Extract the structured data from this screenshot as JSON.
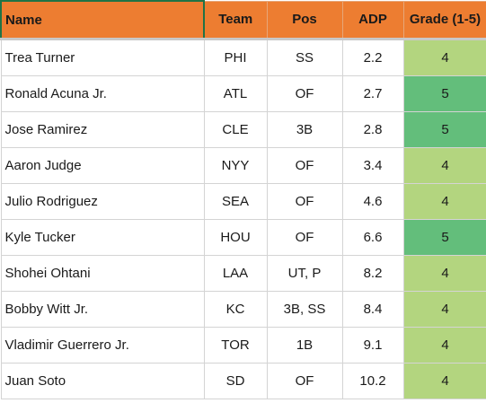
{
  "headers": [
    "Name",
    "Team",
    "Pos",
    "ADP",
    "Grade (1-5)"
  ],
  "grade_colors": {
    "4": "#b3d57f",
    "5": "#63be7b"
  },
  "header_color": "#ed7d31",
  "rows": [
    {
      "name": "Trea Turner",
      "team": "PHI",
      "pos": "SS",
      "adp": "2.2",
      "grade": "4"
    },
    {
      "name": "Ronald Acuna Jr.",
      "team": "ATL",
      "pos": "OF",
      "adp": "2.7",
      "grade": "5"
    },
    {
      "name": "Jose Ramirez",
      "team": "CLE",
      "pos": "3B",
      "adp": "2.8",
      "grade": "5"
    },
    {
      "name": "Aaron Judge",
      "team": "NYY",
      "pos": "OF",
      "adp": "3.4",
      "grade": "4"
    },
    {
      "name": "Julio Rodriguez",
      "team": "SEA",
      "pos": "OF",
      "adp": "4.6",
      "grade": "4"
    },
    {
      "name": "Kyle Tucker",
      "team": "HOU",
      "pos": "OF",
      "adp": "6.6",
      "grade": "5"
    },
    {
      "name": "Shohei Ohtani",
      "team": "LAA",
      "pos": "UT, P",
      "adp": "8.2",
      "grade": "4"
    },
    {
      "name": "Bobby Witt Jr.",
      "team": "KC",
      "pos": "3B, SS",
      "adp": "8.4",
      "grade": "4"
    },
    {
      "name": "Vladimir Guerrero Jr.",
      "team": "TOR",
      "pos": "1B",
      "adp": "9.1",
      "grade": "4"
    },
    {
      "name": "Juan Soto",
      "team": "SD",
      "pos": "OF",
      "adp": "10.2",
      "grade": "4"
    }
  ]
}
